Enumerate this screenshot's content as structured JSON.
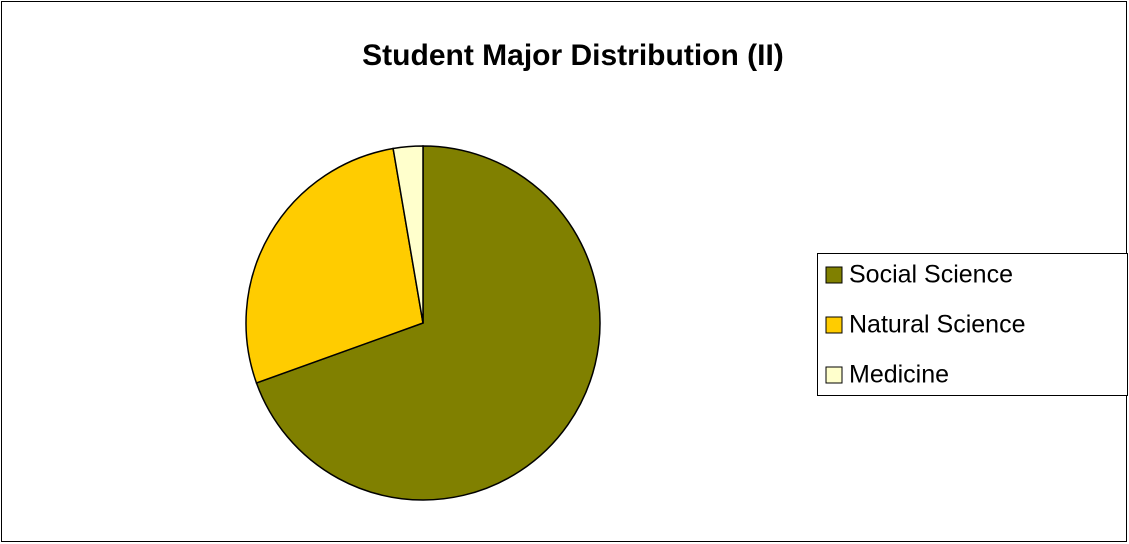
{
  "chart_data": {
    "type": "pie",
    "title": "Student Major Distribution (II)",
    "categories": [
      "Social Science",
      "Natural Science",
      "Medicine"
    ],
    "values": [
      69.5,
      27.8,
      2.7
    ],
    "colors": [
      "#808000",
      "#ffcc00",
      "#ffffcc"
    ],
    "legend": "right"
  }
}
